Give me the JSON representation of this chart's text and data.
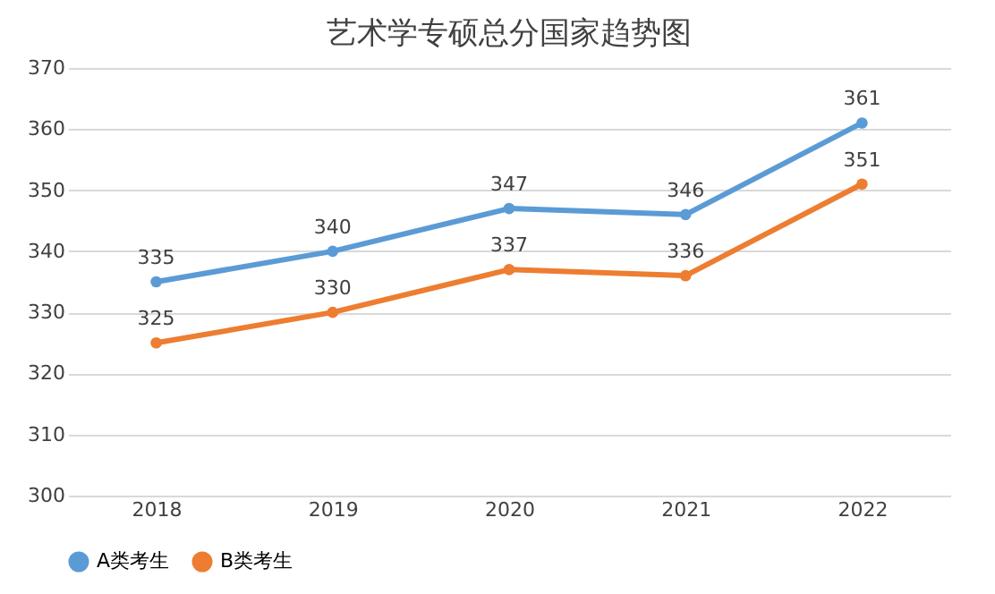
{
  "chart_data": {
    "type": "line",
    "title": "艺术学专硕总分国家趋势图",
    "categories": [
      "2018",
      "2019",
      "2020",
      "2021",
      "2022"
    ],
    "series": [
      {
        "name": "A类考生",
        "color": "#5b9bd5",
        "values": [
          335,
          340,
          347,
          346,
          361
        ]
      },
      {
        "name": "B类考生",
        "color": "#ed7d31",
        "values": [
          325,
          330,
          337,
          336,
          351
        ]
      }
    ],
    "ylim": [
      300,
      370
    ],
    "yticks": [
      300,
      310,
      320,
      330,
      340,
      350,
      360,
      370
    ],
    "grid": "y",
    "legend": "bottom",
    "marker": "circle",
    "data_labels": true
  }
}
